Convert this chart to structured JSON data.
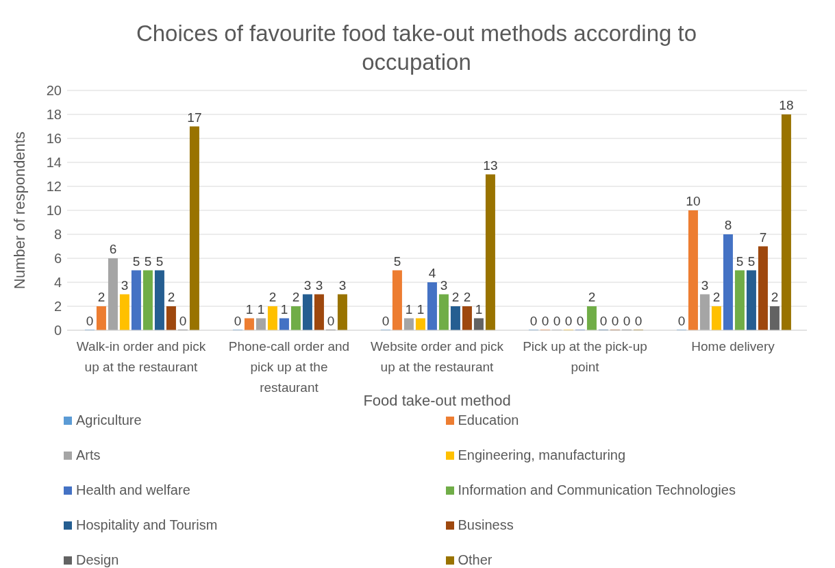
{
  "chart_data": {
    "type": "bar",
    "title": "Choices of favourite food take-out methods according to occupation",
    "xlabel": "Food take-out method",
    "ylabel": "Number of respondents",
    "categories": [
      "Walk-in order and pick up at the restaurant",
      "Phone-call order and pick up at the restaurant",
      "Website order and pick up at the restaurant",
      "Pick up at the pick-up point",
      "Home delivery"
    ],
    "series": [
      {
        "name": "Agriculture",
        "color": "#5b9bd5",
        "values": [
          0,
          0,
          0,
          0,
          0
        ]
      },
      {
        "name": "Education",
        "color": "#ed7d31",
        "values": [
          2,
          1,
          5,
          0,
          10
        ]
      },
      {
        "name": "Arts",
        "color": "#a5a5a5",
        "values": [
          6,
          1,
          1,
          0,
          3
        ]
      },
      {
        "name": "Engineering, manufacturing",
        "color": "#ffc000",
        "values": [
          3,
          2,
          1,
          0,
          2
        ]
      },
      {
        "name": "Health and welfare",
        "color": "#4472c4",
        "values": [
          5,
          1,
          4,
          0,
          8
        ]
      },
      {
        "name": "Information and Communication Technologies",
        "color": "#70ad47",
        "values": [
          5,
          2,
          3,
          2,
          5
        ]
      },
      {
        "name": "Hospitality and Tourism",
        "color": "#255e91",
        "values": [
          5,
          3,
          2,
          0,
          5
        ]
      },
      {
        "name": "Business",
        "color": "#9e480e",
        "values": [
          2,
          3,
          2,
          0,
          7
        ]
      },
      {
        "name": "Design",
        "color": "#636363",
        "values": [
          0,
          0,
          1,
          0,
          2
        ]
      },
      {
        "name": "Other",
        "color": "#997300",
        "values": [
          17,
          3,
          13,
          0,
          18
        ]
      }
    ],
    "ylim": [
      0,
      20
    ],
    "yticks": [
      0,
      2,
      4,
      6,
      8,
      10,
      12,
      14,
      16,
      18,
      20
    ],
    "grid": "y",
    "legend": "bottom",
    "data_labels": true
  }
}
